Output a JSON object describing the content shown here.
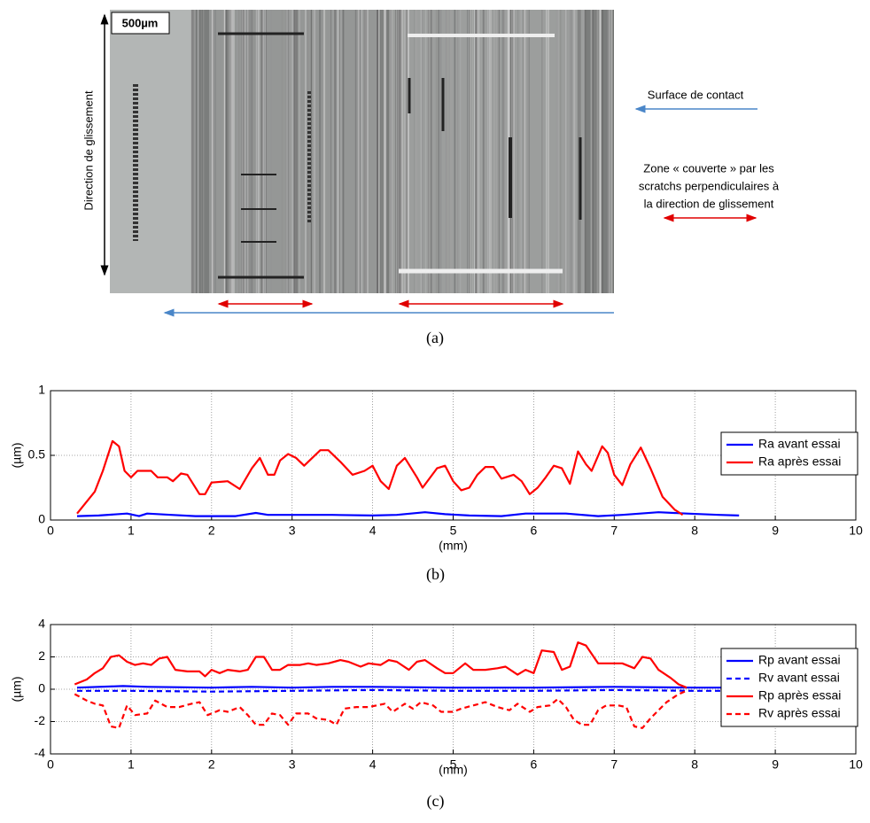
{
  "panel_a": {
    "scale_bar": "500µm",
    "direction_label": "Direction de glissement",
    "legend_contact": "Surface de contact",
    "legend_zone": [
      "Zone « couverte » par les",
      "scratchs perpendiculaires à",
      "la direction de glissement"
    ],
    "caption": "(a)"
  },
  "chart_data": [
    {
      "type": "line",
      "caption": "(b)",
      "xlabel": "(mm)",
      "ylabel": "(µm)",
      "xlim": [
        0,
        10
      ],
      "xticks": [
        0,
        1,
        2,
        3,
        4,
        5,
        6,
        7,
        8,
        9,
        10
      ],
      "ylim": [
        0,
        1
      ],
      "yticks": [
        0,
        0.5,
        1
      ],
      "grid": true,
      "legend": "right",
      "series": [
        {
          "name": "Ra avant essai",
          "color": "#0000ff",
          "dash": false,
          "x": [
            0.33,
            0.6,
            0.95,
            1.1,
            1.2,
            1.5,
            1.8,
            2.3,
            2.55,
            2.7,
            3.5,
            4.0,
            4.3,
            4.65,
            4.9,
            5.2,
            5.6,
            5.9,
            6.4,
            6.8,
            7.1,
            7.55,
            7.9,
            8.3,
            8.55
          ],
          "values": [
            0.03,
            0.035,
            0.05,
            0.03,
            0.05,
            0.04,
            0.03,
            0.03,
            0.055,
            0.04,
            0.04,
            0.035,
            0.04,
            0.06,
            0.045,
            0.035,
            0.03,
            0.05,
            0.05,
            0.03,
            0.04,
            0.06,
            0.05,
            0.04,
            0.035
          ]
        },
        {
          "name": "Ra après essai",
          "color": "#ff0000",
          "dash": false,
          "x": [
            0.33,
            0.55,
            0.65,
            0.77,
            0.85,
            0.92,
            1.0,
            1.08,
            1.25,
            1.33,
            1.45,
            1.52,
            1.62,
            1.7,
            1.85,
            1.92,
            2.0,
            2.2,
            2.35,
            2.5,
            2.6,
            2.7,
            2.78,
            2.85,
            2.95,
            3.05,
            3.15,
            3.25,
            3.35,
            3.45,
            3.6,
            3.75,
            3.9,
            4.0,
            4.1,
            4.2,
            4.3,
            4.4,
            4.55,
            4.62,
            4.8,
            4.9,
            5.0,
            5.1,
            5.2,
            5.3,
            5.4,
            5.5,
            5.6,
            5.75,
            5.85,
            5.95,
            6.05,
            6.15,
            6.25,
            6.35,
            6.45,
            6.55,
            6.65,
            6.72,
            6.85,
            6.92,
            7.0,
            7.1,
            7.2,
            7.33,
            7.45,
            7.6,
            7.75,
            7.85
          ],
          "values": [
            0.05,
            0.22,
            0.38,
            0.61,
            0.57,
            0.38,
            0.33,
            0.38,
            0.38,
            0.33,
            0.33,
            0.3,
            0.36,
            0.35,
            0.2,
            0.2,
            0.29,
            0.3,
            0.24,
            0.4,
            0.48,
            0.35,
            0.35,
            0.46,
            0.51,
            0.48,
            0.42,
            0.48,
            0.54,
            0.54,
            0.45,
            0.35,
            0.38,
            0.42,
            0.3,
            0.24,
            0.42,
            0.48,
            0.33,
            0.25,
            0.4,
            0.42,
            0.3,
            0.23,
            0.25,
            0.35,
            0.41,
            0.41,
            0.32,
            0.35,
            0.3,
            0.2,
            0.25,
            0.33,
            0.42,
            0.4,
            0.28,
            0.53,
            0.43,
            0.38,
            0.57,
            0.52,
            0.35,
            0.27,
            0.43,
            0.56,
            0.4,
            0.18,
            0.08,
            0.04
          ]
        }
      ]
    },
    {
      "type": "line",
      "caption": "(c)",
      "xlabel": "(mm)",
      "ylabel": "(µm)",
      "xlim": [
        0,
        10
      ],
      "xticks": [
        0,
        1,
        2,
        3,
        4,
        5,
        6,
        7,
        8,
        9,
        10
      ],
      "ylim": [
        -4,
        4
      ],
      "yticks": [
        -4,
        -2,
        0,
        2,
        4
      ],
      "grid": true,
      "legend": "right",
      "series": [
        {
          "name": "Rp avant essai",
          "color": "#0000ff",
          "dash": false,
          "x": [
            0.33,
            0.9,
            1.2,
            2,
            2.5,
            3,
            3.5,
            4,
            5,
            6,
            7,
            8,
            8.6
          ],
          "values": [
            0.1,
            0.2,
            0.15,
            0.1,
            0.15,
            0.1,
            0.15,
            0.15,
            0.1,
            0.1,
            0.15,
            0.1,
            0.1
          ]
        },
        {
          "name": "Rv avant essai",
          "color": "#0000ff",
          "dash": true,
          "x": [
            0.33,
            1,
            2,
            3,
            4,
            5,
            6,
            7,
            8,
            8.6
          ],
          "values": [
            -0.1,
            -0.1,
            -0.15,
            -0.1,
            -0.05,
            -0.1,
            -0.1,
            -0.05,
            -0.1,
            -0.1
          ]
        },
        {
          "name": "Rp après essai",
          "color": "#ff0000",
          "dash": false,
          "x": [
            0.3,
            0.45,
            0.55,
            0.65,
            0.75,
            0.85,
            0.95,
            1.05,
            1.15,
            1.25,
            1.35,
            1.45,
            1.55,
            1.7,
            1.85,
            1.92,
            2.0,
            2.1,
            2.2,
            2.35,
            2.45,
            2.55,
            2.65,
            2.75,
            2.85,
            2.95,
            3.1,
            3.2,
            3.3,
            3.45,
            3.6,
            3.7,
            3.85,
            3.95,
            4.1,
            4.2,
            4.3,
            4.45,
            4.55,
            4.65,
            4.8,
            4.9,
            5.0,
            5.15,
            5.25,
            5.4,
            5.55,
            5.65,
            5.8,
            5.9,
            6.0,
            6.1,
            6.25,
            6.35,
            6.45,
            6.55,
            6.65,
            6.8,
            6.95,
            7.1,
            7.25,
            7.35,
            7.45,
            7.55,
            7.7,
            7.8,
            7.9
          ],
          "values": [
            0.3,
            0.6,
            1.0,
            1.3,
            2.0,
            2.1,
            1.7,
            1.5,
            1.6,
            1.5,
            1.9,
            2.0,
            1.2,
            1.1,
            1.1,
            0.8,
            1.2,
            1.0,
            1.2,
            1.1,
            1.2,
            2.0,
            2.0,
            1.2,
            1.2,
            1.5,
            1.5,
            1.6,
            1.5,
            1.6,
            1.8,
            1.7,
            1.4,
            1.6,
            1.5,
            1.8,
            1.7,
            1.2,
            1.7,
            1.8,
            1.3,
            1.0,
            1.0,
            1.6,
            1.2,
            1.2,
            1.3,
            1.4,
            0.9,
            1.2,
            1.0,
            2.4,
            2.3,
            1.2,
            1.4,
            2.9,
            2.7,
            1.6,
            1.6,
            1.6,
            1.3,
            2.0,
            1.9,
            1.2,
            0.7,
            0.3,
            0.1
          ]
        },
        {
          "name": "Rv après essai",
          "color": "#ff0000",
          "dash": true,
          "x": [
            0.3,
            0.45,
            0.55,
            0.65,
            0.75,
            0.85,
            0.95,
            1.05,
            1.2,
            1.3,
            1.45,
            1.6,
            1.75,
            1.85,
            1.95,
            2.1,
            2.2,
            2.35,
            2.45,
            2.55,
            2.65,
            2.75,
            2.85,
            2.95,
            3.05,
            3.2,
            3.3,
            3.45,
            3.55,
            3.65,
            3.8,
            3.95,
            4.05,
            4.15,
            4.25,
            4.4,
            4.5,
            4.6,
            4.75,
            4.85,
            5.0,
            5.1,
            5.25,
            5.4,
            5.55,
            5.7,
            5.8,
            5.95,
            6.05,
            6.2,
            6.3,
            6.4,
            6.5,
            6.6,
            6.7,
            6.8,
            6.9,
            7.05,
            7.15,
            7.25,
            7.35,
            7.45,
            7.55,
            7.65,
            7.8,
            7.9
          ],
          "values": [
            -0.3,
            -0.7,
            -0.9,
            -1.0,
            -2.3,
            -2.4,
            -1.0,
            -1.6,
            -1.5,
            -0.7,
            -1.1,
            -1.1,
            -0.9,
            -0.8,
            -1.6,
            -1.3,
            -1.4,
            -1.1,
            -1.6,
            -2.2,
            -2.2,
            -1.5,
            -1.6,
            -2.2,
            -1.5,
            -1.5,
            -1.8,
            -1.9,
            -2.2,
            -1.2,
            -1.1,
            -1.1,
            -1.0,
            -0.9,
            -1.4,
            -0.9,
            -1.2,
            -0.8,
            -1.0,
            -1.4,
            -1.4,
            -1.2,
            -1.0,
            -0.8,
            -1.1,
            -1.3,
            -0.9,
            -1.4,
            -1.1,
            -1.0,
            -0.6,
            -1.1,
            -1.9,
            -2.2,
            -2.2,
            -1.3,
            -1.0,
            -1.0,
            -1.1,
            -2.3,
            -2.4,
            -1.8,
            -1.3,
            -0.8,
            -0.3,
            -0.1
          ]
        }
      ]
    }
  ]
}
